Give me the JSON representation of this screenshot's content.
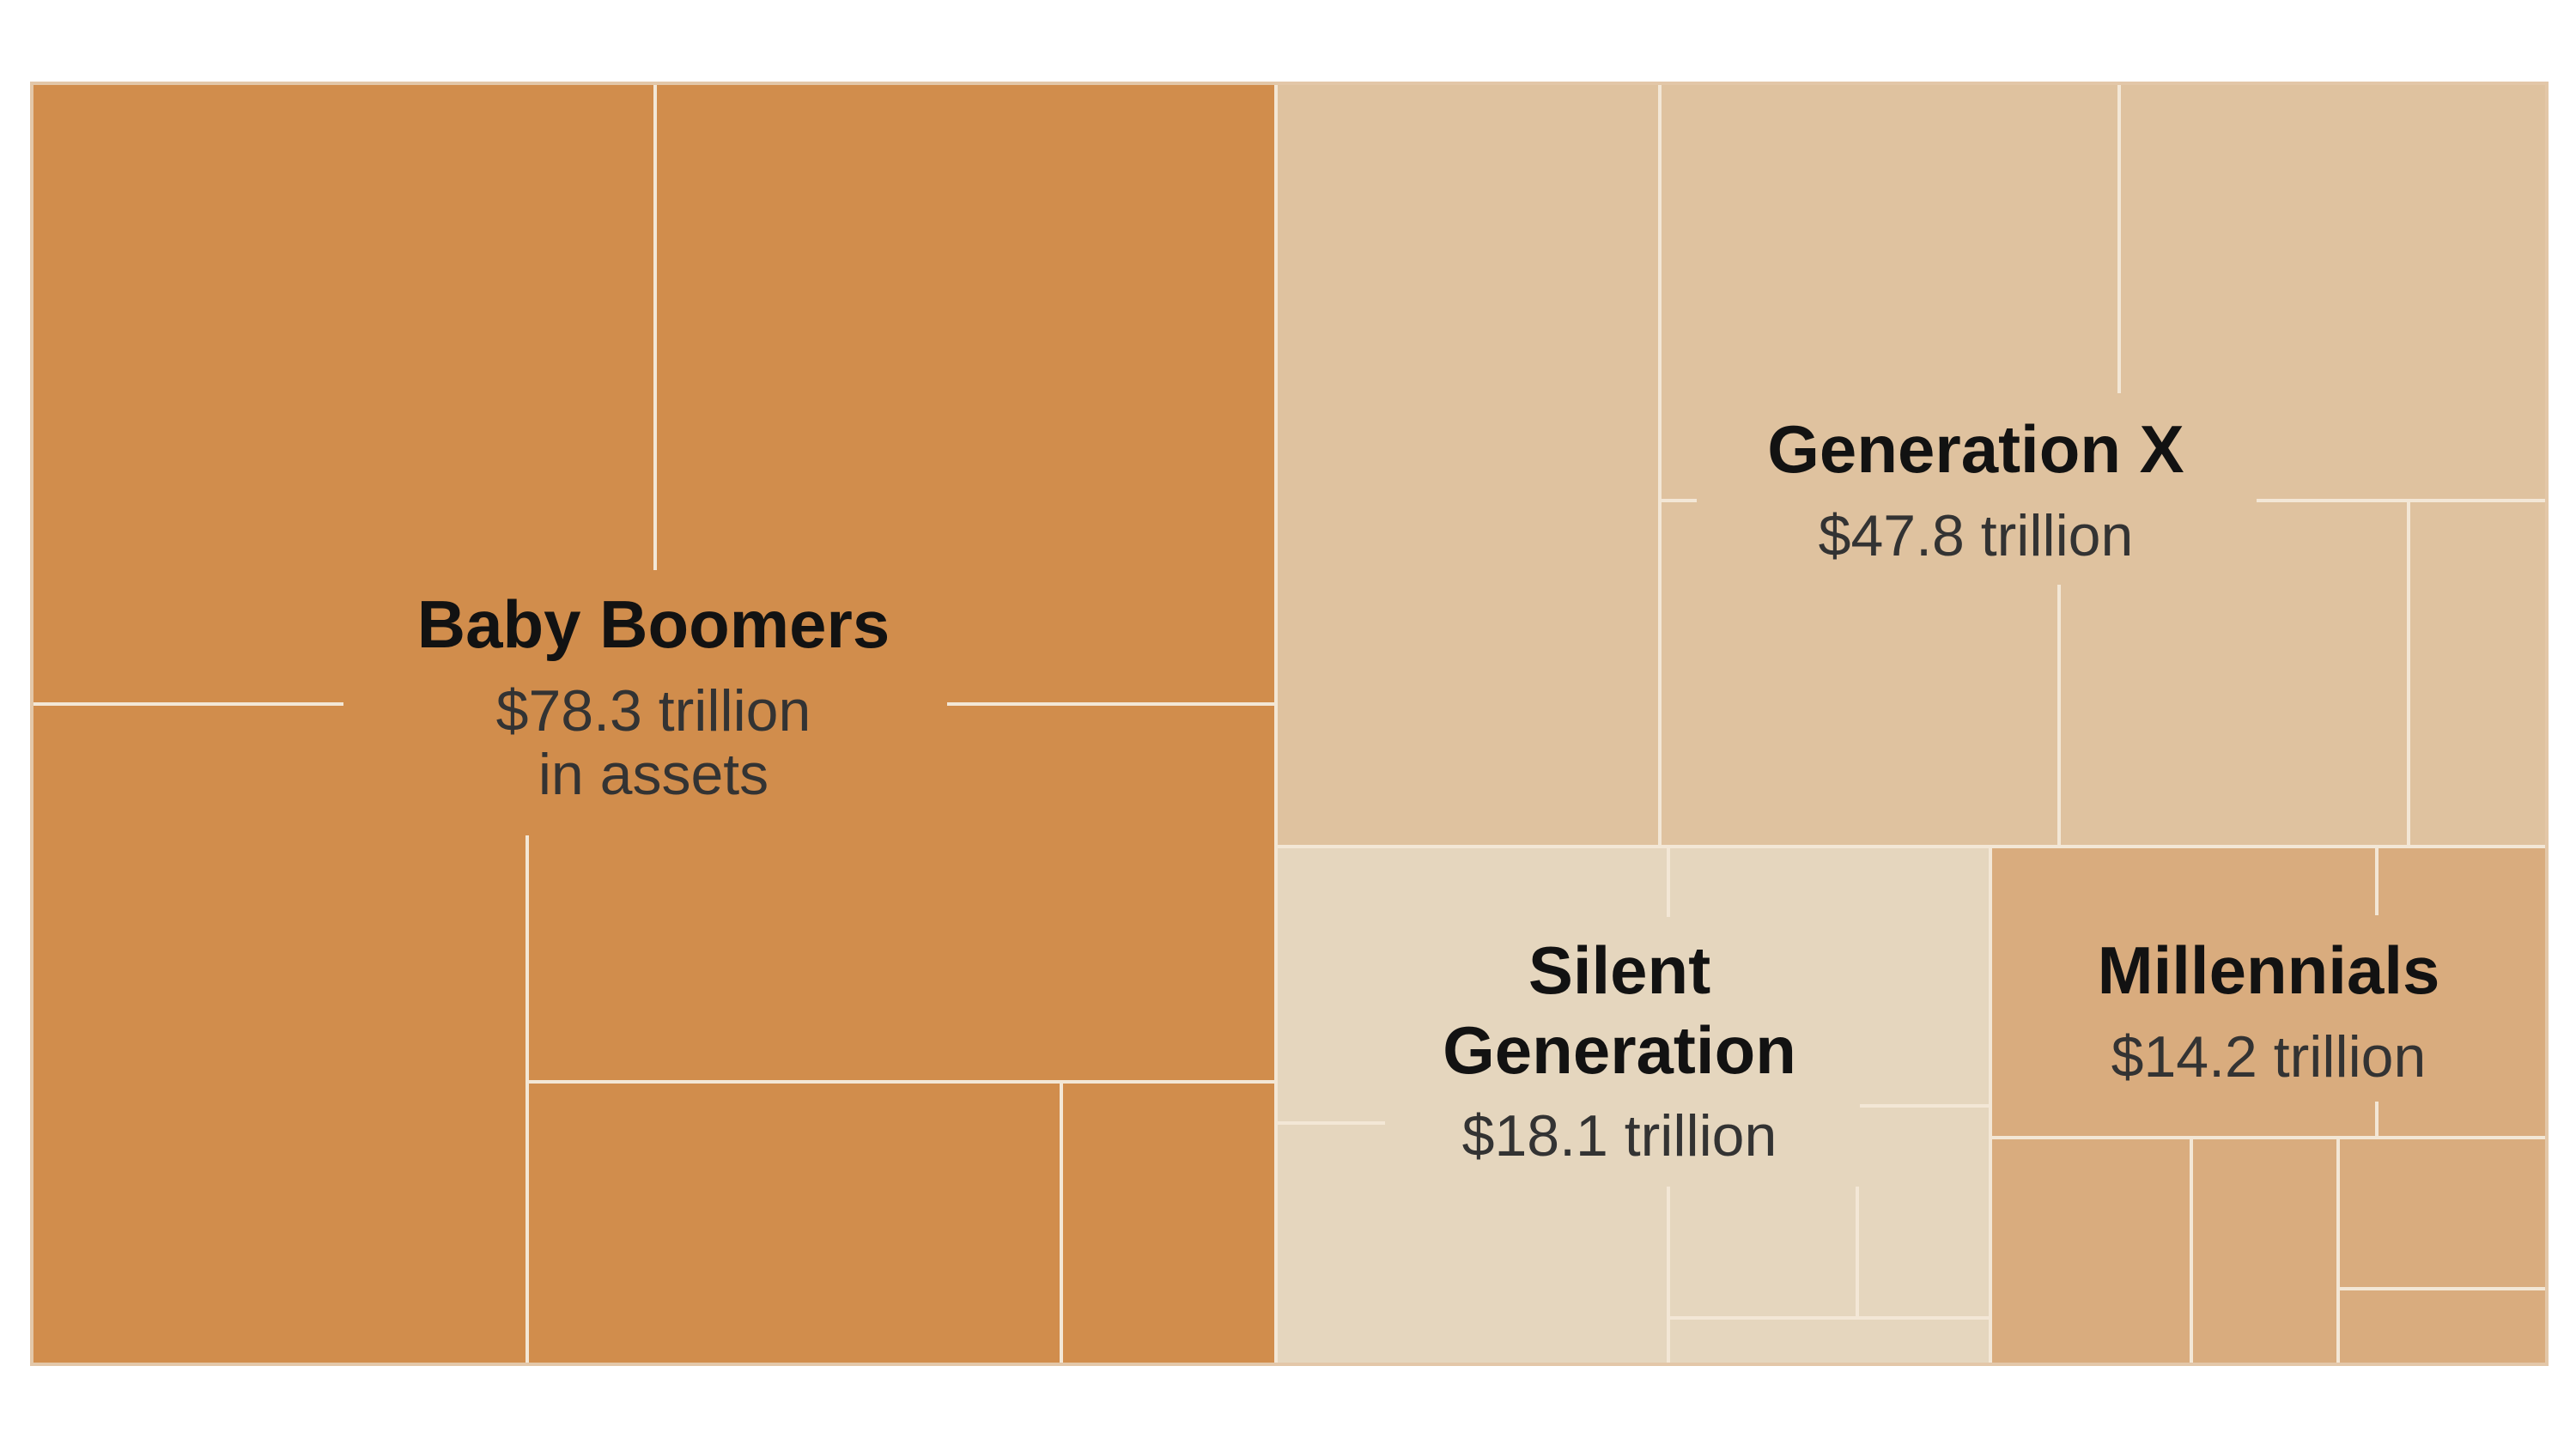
{
  "chart_data": {
    "type": "treemap",
    "title": "",
    "unit": "trillion dollars",
    "series": [
      {
        "name": "Baby Boomers",
        "value": 78.3,
        "value_label": "$78.3 trillion",
        "note": "in assets",
        "color": "#d18d4c"
      },
      {
        "name": "Generation X",
        "value": 47.8,
        "value_label": "$47.8 trillion",
        "note": "",
        "color": "#dfc29f"
      },
      {
        "name": "Silent Generation",
        "value": 18.1,
        "value_label": "$18.1 trillion",
        "note": "",
        "color": "#e5d6be"
      },
      {
        "name": "Millennials",
        "value": 14.2,
        "value_label": "$14.2 trillion",
        "note": "",
        "color": "#d9ac7e"
      }
    ]
  },
  "labels": {
    "boomers": {
      "title": "Baby Boomers",
      "value": "$78.3 trillion",
      "note": "in assets"
    },
    "genx": {
      "title": "Generation X",
      "value": "$47.8 trillion"
    },
    "silent": {
      "title_line1": "Silent",
      "title_line2": "Generation",
      "value": "$18.1 trillion"
    },
    "millennials": {
      "title": "Millennials",
      "value": "$14.2 trillion"
    }
  },
  "colors": {
    "divider": "#f3e7d6",
    "border": "#e3c7a8"
  }
}
